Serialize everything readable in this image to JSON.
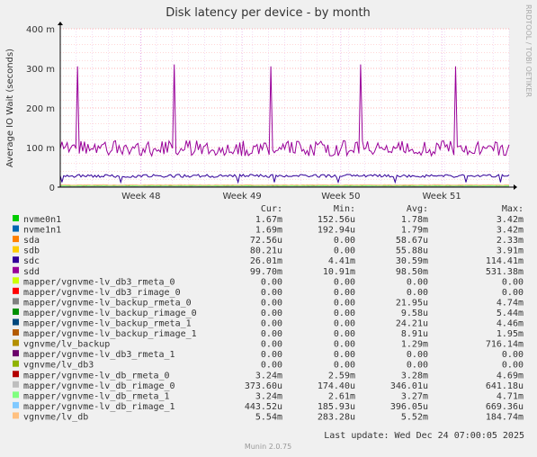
{
  "chart_data": {
    "type": "line",
    "title": "Disk latency per device - by month",
    "ylabel": "Average IO Wait (seconds)",
    "xlabel": "",
    "side_label": "RRDTOOL / TOBI OETIKER",
    "ylim": [
      0,
      0.4
    ],
    "y_ticks": [
      {
        "value": 0,
        "label": "0"
      },
      {
        "value": 0.1,
        "label": "100 m"
      },
      {
        "value": 0.2,
        "label": "200 m"
      },
      {
        "value": 0.3,
        "label": "300 m"
      },
      {
        "value": 0.4,
        "label": "400 m"
      }
    ],
    "x_ticks": [
      {
        "value": 0.18,
        "label": "Week 48"
      },
      {
        "value": 0.405,
        "label": "Week 49"
      },
      {
        "value": 0.625,
        "label": "Week 50"
      },
      {
        "value": 0.85,
        "label": "Week 51"
      }
    ],
    "grid": true,
    "legend_placement": "bottom",
    "column_headers": [
      "Cur:",
      "Min:",
      "Avg:",
      "Max:"
    ],
    "series": [
      {
        "name": "nvme0n1",
        "color": "#00cc00",
        "cur": "1.67m",
        "min": "152.56u",
        "avg": "1.78m",
        "max": "3.42m"
      },
      {
        "name": "nvme1n1",
        "color": "#0066b3",
        "cur": "1.69m",
        "min": "192.94u",
        "avg": "1.79m",
        "max": "3.42m"
      },
      {
        "name": "sda",
        "color": "#ff8000",
        "cur": "72.56u",
        "min": "0.00",
        "avg": "58.67u",
        "max": "2.33m"
      },
      {
        "name": "sdb",
        "color": "#ffcc00",
        "cur": "80.21u",
        "min": "0.00",
        "avg": "55.88u",
        "max": "3.91m"
      },
      {
        "name": "sdc",
        "color": "#330099",
        "cur": "26.01m",
        "min": "4.41m",
        "avg": "30.59m",
        "max": "114.41m"
      },
      {
        "name": "sdd",
        "color": "#990099",
        "cur": "99.70m",
        "min": "10.91m",
        "avg": "98.50m",
        "max": "531.38m"
      },
      {
        "name": "mapper/vgnvme-lv_db3_rmeta_0",
        "color": "#ccff00",
        "cur": "0.00",
        "min": "0.00",
        "avg": "0.00",
        "max": "0.00"
      },
      {
        "name": "mapper/vgnvme-lv_db3_rimage_0",
        "color": "#ff0000",
        "cur": "0.00",
        "min": "0.00",
        "avg": "0.00",
        "max": "0.00"
      },
      {
        "name": "mapper/vgnvme-lv_backup_rmeta_0",
        "color": "#808080",
        "cur": "0.00",
        "min": "0.00",
        "avg": "21.95u",
        "max": "4.74m"
      },
      {
        "name": "mapper/vgnvme-lv_backup_rimage_0",
        "color": "#008f00",
        "cur": "0.00",
        "min": "0.00",
        "avg": "9.58u",
        "max": "5.44m"
      },
      {
        "name": "mapper/vgnvme-lv_backup_rmeta_1",
        "color": "#00487d",
        "cur": "0.00",
        "min": "0.00",
        "avg": "24.21u",
        "max": "4.46m"
      },
      {
        "name": "mapper/vgnvme-lv_backup_rimage_1",
        "color": "#b35a00",
        "cur": "0.00",
        "min": "0.00",
        "avg": "8.91u",
        "max": "1.95m"
      },
      {
        "name": "vgnvme/lv_backup",
        "color": "#b38f00",
        "cur": "0.00",
        "min": "0.00",
        "avg": "1.29m",
        "max": "716.14m"
      },
      {
        "name": "mapper/vgnvme-lv_db3_rmeta_1",
        "color": "#6b006b",
        "cur": "0.00",
        "min": "0.00",
        "avg": "0.00",
        "max": "0.00"
      },
      {
        "name": "vgnvme/lv_db3",
        "color": "#8fb300",
        "cur": "0.00",
        "min": "0.00",
        "avg": "0.00",
        "max": "0.00"
      },
      {
        "name": "mapper/vgnvme-lv_db_rmeta_0",
        "color": "#b30000",
        "cur": "3.24m",
        "min": "2.59m",
        "avg": "3.28m",
        "max": "4.69m"
      },
      {
        "name": "mapper/vgnvme-lv_db_rimage_0",
        "color": "#bebebe",
        "cur": "373.60u",
        "min": "174.40u",
        "avg": "346.01u",
        "max": "641.18u"
      },
      {
        "name": "mapper/vgnvme-lv_db_rmeta_1",
        "color": "#80ff80",
        "cur": "3.24m",
        "min": "2.61m",
        "avg": "3.27m",
        "max": "4.71m"
      },
      {
        "name": "mapper/vgnvme-lv_db_rimage_1",
        "color": "#80c9ff",
        "cur": "443.52u",
        "min": "185.93u",
        "avg": "396.05u",
        "max": "669.36u"
      },
      {
        "name": "vgnvme/lv_db",
        "color": "#ffc080",
        "cur": "5.54m",
        "min": "283.28u",
        "avg": "5.52m",
        "max": "184.74m"
      }
    ],
    "spikes": {
      "sdd_peaks": [
        {
          "x": 0.04,
          "y": 0.305
        },
        {
          "x": 0.255,
          "y": 0.31
        },
        {
          "x": 0.47,
          "y": 0.305
        },
        {
          "x": 0.67,
          "y": 0.31
        },
        {
          "x": 0.88,
          "y": 0.305
        }
      ]
    },
    "last_update": "Last update: Wed Dec 24 07:00:05 2025",
    "footer": "Munin 2.0.75"
  }
}
